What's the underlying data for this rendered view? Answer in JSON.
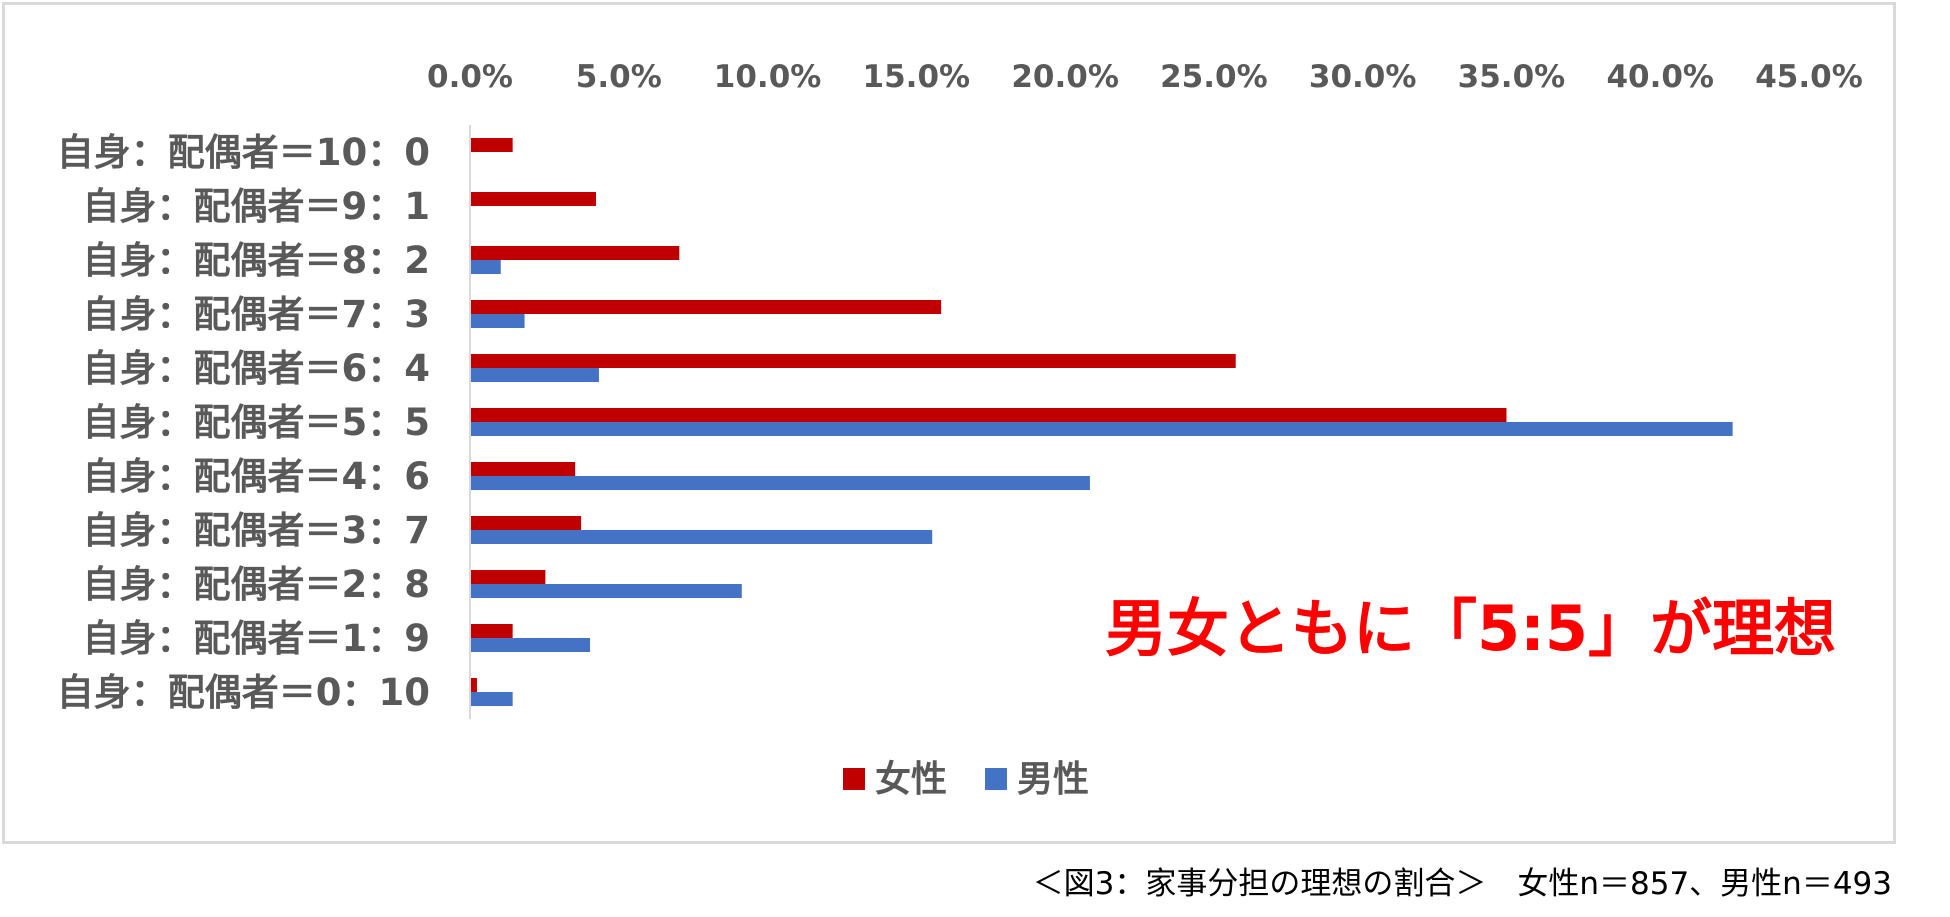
{
  "chart_data": {
    "type": "bar",
    "orientation": "horizontal",
    "categories": [
      "自身：配偶者＝10：0",
      "自身：配偶者＝9：1",
      "自身：配偶者＝8：2",
      "自身：配偶者＝7：3",
      "自身：配偶者＝6：4",
      "自身：配偶者＝5：5",
      "自身：配偶者＝4：6",
      "自身：配偶者＝3：7",
      "自身：配偶者＝2：8",
      "自身：配偶者＝1：9",
      "自身：配偶者＝0：10"
    ],
    "series": [
      {
        "name": "女性",
        "color": "#c00000",
        "values": [
          1.4,
          4.2,
          7.0,
          15.8,
          25.7,
          34.8,
          3.5,
          3.7,
          2.5,
          1.4,
          0.2
        ]
      },
      {
        "name": "男性",
        "color": "#4472c4",
        "values": [
          0.0,
          0.0,
          1.0,
          1.8,
          4.3,
          42.4,
          20.8,
          15.5,
          9.1,
          4.0,
          1.4
        ]
      }
    ],
    "xlim": [
      0,
      45
    ],
    "xticks": [
      "0.0%",
      "5.0%",
      "10.0%",
      "15.0%",
      "20.0%",
      "25.0%",
      "30.0%",
      "35.0%",
      "40.0%",
      "45.0%"
    ],
    "axis_position": "top",
    "grid": false,
    "legend_position": "bottom",
    "annotation": "男女ともに「5:5」が理想",
    "annotation_color": "#ff0000"
  },
  "caption": "＜図3：家事分担の理想の割合＞　女性n＝857、男性n＝493"
}
